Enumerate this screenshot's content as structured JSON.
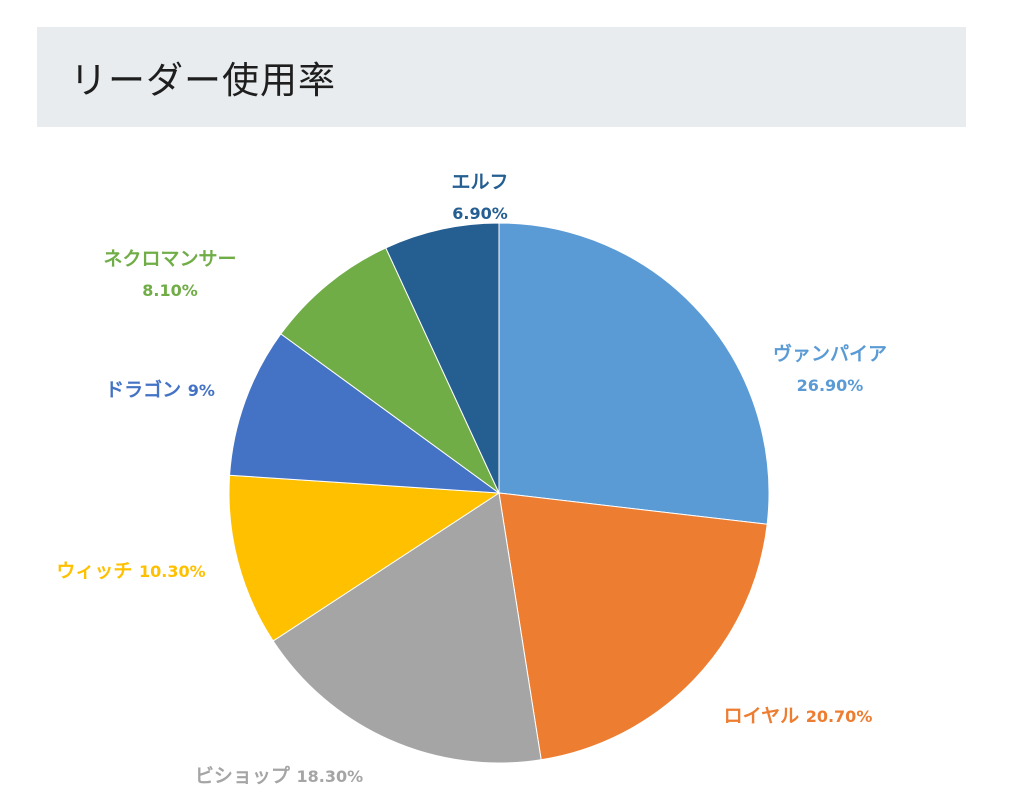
{
  "header": {
    "title": "リーダー使用率"
  },
  "chart_data": {
    "type": "pie",
    "title": "",
    "slices": [
      {
        "name": "ヴァンパイア",
        "value": 26.9,
        "label": "26.90%",
        "color": "#5b9bd5",
        "label_color": "#5b9bd5"
      },
      {
        "name": "ロイヤル",
        "value": 20.7,
        "label": "20.70%",
        "color": "#ed7d31",
        "label_color": "#ed7d31"
      },
      {
        "name": "ビショップ",
        "value": 18.3,
        "label": "18.30%",
        "color": "#a5a5a5",
        "label_color": "#a5a5a5"
      },
      {
        "name": "ウィッチ",
        "value": 10.3,
        "label": "10.30%",
        "color": "#ffc000",
        "label_color": "#ffc000"
      },
      {
        "name": "ドラゴン",
        "value": 9,
        "label": "9%",
        "color": "#4472c4",
        "label_color": "#4472c4"
      },
      {
        "name": "ネクロマンサー",
        "value": 8.1,
        "label": "8.10%",
        "color": "#70ad47",
        "label_color": "#70ad47"
      },
      {
        "name": "エルフ",
        "value": 6.9,
        "label": "6.90%",
        "color": "#255e91",
        "label_color": "#255e91"
      }
    ]
  }
}
